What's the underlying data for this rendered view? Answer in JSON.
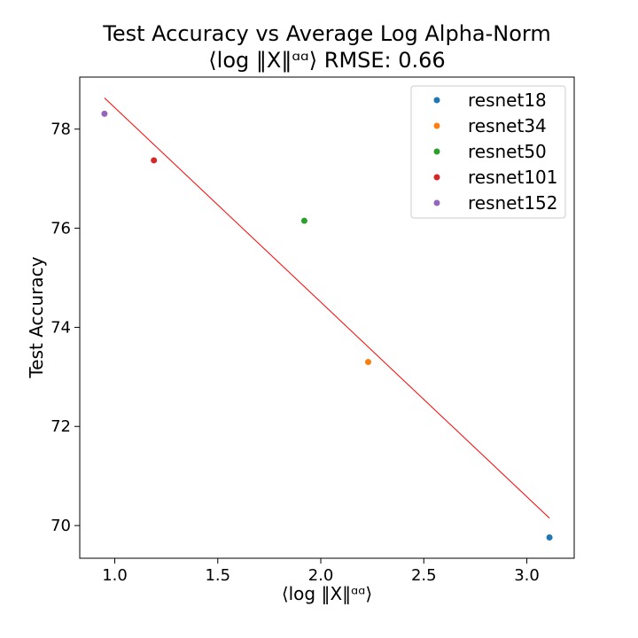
{
  "chart_data": {
    "type": "scatter",
    "title_line1": "Test Accuracy vs Average Log Alpha-Norm",
    "title_line2": "⟨log ‖X‖ᵅᵅ⟩ RMSE: 0.66",
    "xlabel": "⟨log ‖X‖ᵅᵅ⟩",
    "ylabel": "Test Accuracy",
    "xlim": [
      0.83,
      3.23
    ],
    "ylim": [
      69.34,
      79.05
    ],
    "xticks": [
      1.0,
      1.5,
      2.0,
      2.5,
      3.0
    ],
    "xtick_labels": [
      "1.0",
      "1.5",
      "2.0",
      "2.5",
      "3.0"
    ],
    "yticks": [
      70,
      72,
      74,
      76,
      78
    ],
    "ytick_labels": [
      "70",
      "72",
      "74",
      "76",
      "78"
    ],
    "grid": false,
    "legend_position": "top-right",
    "series": [
      {
        "name": "resnet18",
        "color": "#1f77b4",
        "x": 3.11,
        "y": 69.76
      },
      {
        "name": "resnet34",
        "color": "#ff7f0e",
        "x": 2.23,
        "y": 73.3
      },
      {
        "name": "resnet50",
        "color": "#2ca02c",
        "x": 1.92,
        "y": 76.15
      },
      {
        "name": "resnet101",
        "color": "#d62728",
        "x": 1.19,
        "y": 77.37
      },
      {
        "name": "resnet152",
        "color": "#9467bd",
        "x": 0.95,
        "y": 78.31
      }
    ],
    "fit_line": {
      "color": "#ff0000",
      "x": [
        0.95,
        3.11
      ],
      "y": [
        78.63,
        70.15
      ]
    }
  }
}
